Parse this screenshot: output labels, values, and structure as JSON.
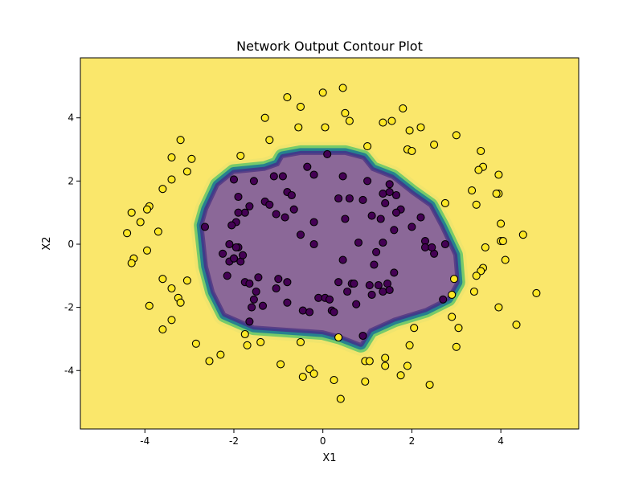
{
  "chart_data": {
    "type": "scatter",
    "title": "Network Output Contour Plot",
    "xlabel": "X1",
    "ylabel": "X2",
    "xlim": [
      -5.45,
      5.75
    ],
    "ylim": [
      -5.85,
      5.9
    ],
    "xticks": [
      "-4",
      "-2",
      "0",
      "2",
      "4"
    ],
    "yticks": [
      "-4",
      "-2",
      "0",
      "2",
      "4"
    ],
    "grid": false,
    "colors": {
      "background": "#fae76b",
      "inner_region": "#8b6898",
      "boundary_inner": "#3e3d8b",
      "boundary_mid": "#26828e",
      "boundary_outer": "#4ec36b",
      "class_outer_point": "#fde725",
      "class_inner_point": "#440154",
      "point_edge": "#000000"
    },
    "decision_boundary": [
      [
        -2.7,
        0.6
      ],
      [
        -2.6,
        1.1
      ],
      [
        -2.35,
        1.85
      ],
      [
        -2.0,
        2.25
      ],
      [
        -1.3,
        2.35
      ],
      [
        -1.0,
        2.5
      ],
      [
        -0.9,
        2.75
      ],
      [
        -0.5,
        2.85
      ],
      [
        0.5,
        2.85
      ],
      [
        0.9,
        2.7
      ],
      [
        1.1,
        2.35
      ],
      [
        1.55,
        2.1
      ],
      [
        2.0,
        1.6
      ],
      [
        2.4,
        1.2
      ],
      [
        2.65,
        0.55
      ],
      [
        2.95,
        -0.35
      ],
      [
        3.0,
        -1.2
      ],
      [
        2.8,
        -1.7
      ],
      [
        2.3,
        -2.05
      ],
      [
        1.6,
        -2.35
      ],
      [
        1.05,
        -2.7
      ],
      [
        0.85,
        -3.15
      ],
      [
        0.4,
        -2.9
      ],
      [
        0.0,
        -2.75
      ],
      [
        -1.55,
        -2.6
      ],
      [
        -2.2,
        -2.2
      ],
      [
        -2.45,
        -1.5
      ],
      [
        -2.6,
        -0.7
      ]
    ],
    "series": [
      {
        "name": "",
        "color": "#fde725",
        "x": [
          0.45,
          -0.8,
          0.0,
          -0.5,
          1.8,
          0.5,
          0.6,
          -1.3,
          -0.55,
          0.05,
          1.35,
          1.55,
          2.2,
          1.95,
          2.5,
          3.0,
          1.9,
          2.0,
          -1.2,
          -1.85,
          1.0,
          -3.2,
          -3.4,
          -2.95,
          -3.4,
          -3.05,
          -3.6,
          -3.9,
          -3.95,
          -4.3,
          -4.1,
          -4.4,
          -3.7,
          -4.25,
          -4.3,
          -3.95,
          -3.6,
          -3.05,
          -3.4,
          -3.25,
          -3.9,
          -3.2,
          -3.4,
          -3.6,
          -2.85,
          -2.55,
          -2.3,
          -1.75,
          -1.7,
          -1.4,
          -0.5,
          -0.95,
          -0.3,
          -0.45,
          -0.2,
          0.35,
          0.25,
          0.4,
          0.95,
          0.95,
          1.05,
          1.4,
          1.4,
          1.75,
          1.9,
          1.95,
          2.05,
          2.4,
          3.0,
          3.05,
          2.9,
          2.75,
          3.55,
          3.6,
          3.35,
          3.5,
          3.45,
          3.95,
          3.9,
          3.95,
          4.0,
          4.0,
          4.05,
          4.1,
          3.6,
          3.55,
          3.95,
          4.35,
          4.5,
          4.8,
          3.65,
          3.45,
          3.4,
          2.9,
          2.95
        ],
        "y": [
          4.95,
          4.65,
          4.8,
          4.35,
          4.3,
          4.15,
          3.9,
          4.0,
          3.7,
          3.7,
          3.85,
          3.9,
          3.7,
          3.6,
          3.15,
          3.45,
          3.0,
          2.95,
          3.3,
          2.8,
          3.1,
          3.3,
          2.75,
          2.7,
          2.05,
          2.3,
          1.75,
          1.2,
          1.1,
          1.0,
          0.7,
          0.35,
          0.4,
          -0.45,
          -0.6,
          -0.2,
          -1.1,
          -1.15,
          -1.4,
          -1.7,
          -1.95,
          -1.85,
          -2.4,
          -2.7,
          -3.15,
          -3.7,
          -3.5,
          -2.85,
          -3.2,
          -3.1,
          -3.1,
          -3.8,
          -3.95,
          -4.2,
          -4.1,
          -2.95,
          -4.3,
          -4.9,
          -3.7,
          -4.35,
          -3.7,
          -3.6,
          -3.85,
          -4.15,
          -3.85,
          -3.2,
          -2.65,
          -4.45,
          -3.25,
          -2.65,
          -2.3,
          1.3,
          2.95,
          2.45,
          1.7,
          2.35,
          1.25,
          1.6,
          1.6,
          2.2,
          0.65,
          0.1,
          0.1,
          -0.5,
          -0.75,
          -0.85,
          -2.0,
          -2.55,
          0.3,
          -1.55,
          -0.1,
          -1.0,
          -1.5,
          -1.6,
          -1.1
        ]
      },
      {
        "name": "",
        "color": "#440154",
        "x": [
          0.1,
          -0.9,
          -1.1,
          -0.35,
          -0.2,
          0.45,
          0.6,
          1.0,
          1.35,
          1.5,
          1.5,
          1.4,
          1.65,
          1.75,
          1.3,
          1.1,
          1.6,
          2.0,
          2.3,
          2.2,
          2.3,
          2.5,
          2.45,
          2.75,
          -2.65,
          -2.0,
          -1.9,
          -1.55,
          -1.3,
          -1.2,
          -0.8,
          -0.65,
          -0.7,
          -1.65,
          -1.75,
          -1.9,
          -1.95,
          -2.05,
          -2.1,
          -2.25,
          -2.0,
          -2.1,
          -1.85,
          -1.8,
          -1.9,
          -1.95,
          -2.0,
          -2.15,
          -1.75,
          -1.65,
          -1.45,
          -1.5,
          -1.55,
          -1.35,
          -1.6,
          -1.65,
          -1.05,
          -1.0,
          -0.8,
          -0.8,
          -0.45,
          -0.3,
          -0.1,
          0.05,
          0.15,
          0.2,
          0.25,
          0.35,
          0.55,
          0.65,
          0.7,
          0.75,
          0.9,
          1.05,
          1.1,
          1.25,
          1.35,
          1.45,
          1.5,
          1.6,
          1.15,
          1.2,
          1.35,
          0.8,
          0.9,
          -0.2,
          -0.2,
          -0.5,
          0.35,
          0.5,
          0.45,
          -0.85,
          -1.05,
          2.7,
          1.65
        ],
        "y": [
          2.85,
          2.15,
          2.15,
          2.45,
          2.2,
          2.15,
          1.45,
          2.0,
          1.6,
          1.9,
          1.65,
          1.3,
          1.55,
          1.1,
          0.8,
          0.9,
          0.45,
          0.55,
          0.1,
          0.85,
          -0.1,
          -0.3,
          -0.1,
          0.0,
          0.55,
          2.05,
          1.5,
          2.0,
          1.35,
          1.25,
          1.65,
          1.1,
          1.55,
          1.2,
          1.0,
          1.0,
          0.7,
          0.6,
          0.0,
          -0.3,
          -0.45,
          -0.55,
          -0.55,
          -0.35,
          -0.1,
          -0.1,
          -0.45,
          -1.0,
          -1.2,
          -1.25,
          -1.05,
          -1.5,
          -1.75,
          -1.95,
          -2.0,
          -2.45,
          -1.4,
          -1.1,
          -1.2,
          -1.85,
          -2.1,
          -2.15,
          -1.7,
          -1.7,
          -1.75,
          -2.1,
          -2.15,
          -1.2,
          -1.5,
          -1.25,
          -1.25,
          -1.9,
          -2.9,
          -1.3,
          -1.6,
          -1.3,
          -1.5,
          -1.25,
          -1.45,
          -0.9,
          -0.65,
          -0.25,
          0.05,
          0.05,
          1.4,
          0.7,
          0.0,
          0.3,
          1.45,
          0.8,
          -0.5,
          0.85,
          0.95,
          -1.75,
          1.0
        ]
      }
    ]
  }
}
